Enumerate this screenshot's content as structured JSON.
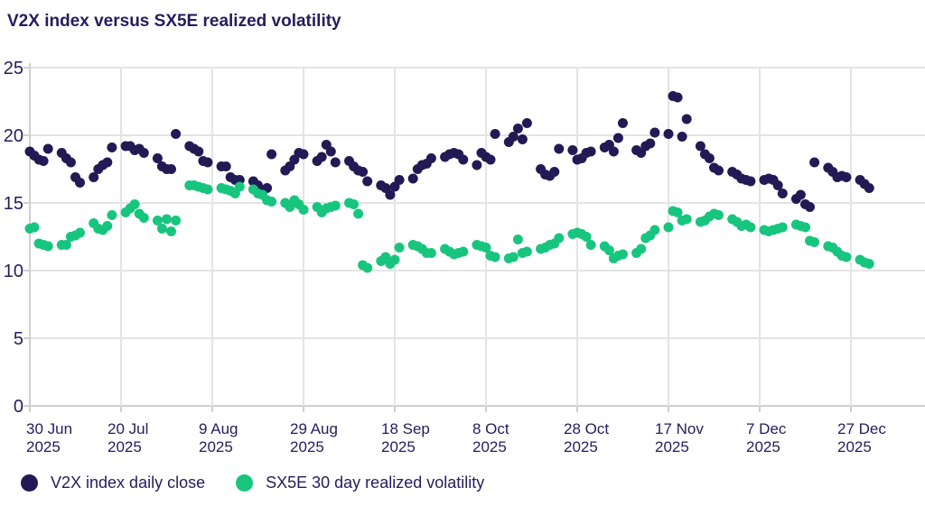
{
  "chart_data": {
    "type": "scatter",
    "title": "V2X index versus SX5E realized volatility",
    "xlabel": "",
    "ylabel": "",
    "grid": true,
    "legend_position": "bottom-left",
    "colors": {
      "v2x": "#221A54",
      "sx5e": "#18C57E",
      "text": "#251C5E",
      "gridline": "#E4E4E4",
      "axis": "#CFCFCF"
    },
    "y_axis": {
      "min": 0,
      "max": 25,
      "ticks": [
        0,
        5,
        10,
        15,
        20,
        25
      ]
    },
    "x_axis": {
      "unit": "days-since-30-Jun-2025",
      "ticks": [
        {
          "day": 0,
          "label": "30 Jun",
          "year": "2025"
        },
        {
          "day": 20,
          "label": "20 Jul",
          "year": "2025"
        },
        {
          "day": 40,
          "label": "9 Aug",
          "year": "2025"
        },
        {
          "day": 60,
          "label": "29 Aug",
          "year": "2025"
        },
        {
          "day": 80,
          "label": "18 Sep",
          "year": "2025"
        },
        {
          "day": 100,
          "label": "8 Oct",
          "year": "2025"
        },
        {
          "day": 120,
          "label": "28 Oct",
          "year": "2025"
        },
        {
          "day": 140,
          "label": "17 Nov",
          "year": "2025"
        },
        {
          "day": 160,
          "label": "7 Dec",
          "year": "2025"
        },
        {
          "day": 180,
          "label": "27 Dec",
          "year": "2025"
        }
      ]
    },
    "series": [
      {
        "name": "V2X index daily close",
        "color": "#221A54",
        "points": [
          [
            0,
            18.8
          ],
          [
            1,
            18.5
          ],
          [
            2,
            18.2
          ],
          [
            3,
            18.1
          ],
          [
            4,
            19.0
          ],
          [
            7,
            18.7
          ],
          [
            8,
            18.3
          ],
          [
            9,
            18.0
          ],
          [
            10,
            16.9
          ],
          [
            11,
            16.5
          ],
          [
            14,
            16.9
          ],
          [
            15,
            17.5
          ],
          [
            16,
            17.8
          ],
          [
            17,
            18.0
          ],
          [
            18,
            19.1
          ],
          [
            21,
            19.2
          ],
          [
            22,
            19.2
          ],
          [
            23,
            18.9
          ],
          [
            24,
            19.0
          ],
          [
            25,
            18.7
          ],
          [
            28,
            18.3
          ],
          [
            29,
            17.7
          ],
          [
            30,
            17.5
          ],
          [
            31,
            17.5
          ],
          [
            32,
            20.1
          ],
          [
            35,
            19.2
          ],
          [
            36,
            19.0
          ],
          [
            37,
            18.8
          ],
          [
            38,
            18.1
          ],
          [
            39,
            18.0
          ],
          [
            42,
            17.7
          ],
          [
            43,
            17.7
          ],
          [
            44,
            16.9
          ],
          [
            45,
            16.7
          ],
          [
            46,
            16.7
          ],
          [
            49,
            16.6
          ],
          [
            50,
            16.3
          ],
          [
            51,
            15.8
          ],
          [
            52,
            16.1
          ],
          [
            53,
            18.6
          ],
          [
            56,
            17.4
          ],
          [
            57,
            17.7
          ],
          [
            58,
            18.2
          ],
          [
            59,
            18.7
          ],
          [
            60,
            18.6
          ],
          [
            63,
            18.1
          ],
          [
            64,
            18.4
          ],
          [
            65,
            19.3
          ],
          [
            66,
            18.8
          ],
          [
            67,
            18.0
          ],
          [
            70,
            18.1
          ],
          [
            71,
            17.7
          ],
          [
            72,
            17.4
          ],
          [
            73,
            17.3
          ],
          [
            74,
            16.6
          ],
          [
            77,
            16.3
          ],
          [
            78,
            16.1
          ],
          [
            79,
            15.6
          ],
          [
            80,
            16.2
          ],
          [
            81,
            16.7
          ],
          [
            84,
            16.8
          ],
          [
            85,
            17.5
          ],
          [
            86,
            17.8
          ],
          [
            87,
            17.9
          ],
          [
            88,
            18.3
          ],
          [
            91,
            18.4
          ],
          [
            92,
            18.6
          ],
          [
            93,
            18.7
          ],
          [
            94,
            18.6
          ],
          [
            95,
            18.2
          ],
          [
            98,
            17.8
          ],
          [
            99,
            18.7
          ],
          [
            100,
            18.4
          ],
          [
            101,
            18.2
          ],
          [
            102,
            20.1
          ],
          [
            105,
            19.5
          ],
          [
            106,
            19.9
          ],
          [
            107,
            20.5
          ],
          [
            108,
            19.7
          ],
          [
            109,
            20.9
          ],
          [
            112,
            17.5
          ],
          [
            113,
            17.1
          ],
          [
            114,
            17.0
          ],
          [
            115,
            17.3
          ],
          [
            116,
            19.0
          ],
          [
            119,
            18.9
          ],
          [
            120,
            18.2
          ],
          [
            121,
            18.3
          ],
          [
            122,
            18.7
          ],
          [
            123,
            18.8
          ],
          [
            126,
            19.1
          ],
          [
            127,
            19.3
          ],
          [
            128,
            18.8
          ],
          [
            129,
            19.8
          ],
          [
            130,
            20.9
          ],
          [
            133,
            18.9
          ],
          [
            134,
            18.7
          ],
          [
            135,
            19.2
          ],
          [
            136,
            19.4
          ],
          [
            137,
            20.2
          ],
          [
            140,
            20.1
          ],
          [
            141,
            22.9
          ],
          [
            142,
            22.8
          ],
          [
            143,
            19.9
          ],
          [
            144,
            21.2
          ],
          [
            147,
            19.2
          ],
          [
            148,
            18.6
          ],
          [
            149,
            18.3
          ],
          [
            150,
            17.6
          ],
          [
            151,
            17.4
          ],
          [
            154,
            17.3
          ],
          [
            155,
            17.1
          ],
          [
            156,
            16.8
          ],
          [
            157,
            16.7
          ],
          [
            158,
            16.6
          ],
          [
            161,
            16.7
          ],
          [
            162,
            16.8
          ],
          [
            163,
            16.7
          ],
          [
            164,
            16.3
          ],
          [
            165,
            15.7
          ],
          [
            168,
            15.3
          ],
          [
            169,
            15.6
          ],
          [
            170,
            14.9
          ],
          [
            171,
            14.7
          ],
          [
            172,
            18.0
          ],
          [
            175,
            17.6
          ],
          [
            176,
            17.3
          ],
          [
            177,
            16.9
          ],
          [
            178,
            17.0
          ],
          [
            179,
            16.9
          ],
          [
            182,
            16.7
          ],
          [
            183,
            16.4
          ],
          [
            184,
            16.1
          ]
        ]
      },
      {
        "name": "SX5E 30 day realized volatility",
        "color": "#18C57E",
        "points": [
          [
            0,
            13.1
          ],
          [
            1,
            13.2
          ],
          [
            2,
            12.0
          ],
          [
            3,
            11.9
          ],
          [
            4,
            11.8
          ],
          [
            7,
            11.9
          ],
          [
            8,
            11.9
          ],
          [
            9,
            12.5
          ],
          [
            10,
            12.6
          ],
          [
            11,
            12.8
          ],
          [
            14,
            13.5
          ],
          [
            15,
            13.1
          ],
          [
            16,
            13.0
          ],
          [
            17,
            13.3
          ],
          [
            18,
            14.1
          ],
          [
            21,
            14.3
          ],
          [
            22,
            14.6
          ],
          [
            23,
            14.9
          ],
          [
            24,
            14.2
          ],
          [
            25,
            13.9
          ],
          [
            28,
            13.7
          ],
          [
            29,
            13.1
          ],
          [
            30,
            13.8
          ],
          [
            31,
            12.9
          ],
          [
            32,
            13.7
          ],
          [
            35,
            16.3
          ],
          [
            36,
            16.3
          ],
          [
            37,
            16.2
          ],
          [
            38,
            16.1
          ],
          [
            39,
            16.0
          ],
          [
            42,
            16.1
          ],
          [
            43,
            16.0
          ],
          [
            44,
            15.9
          ],
          [
            45,
            15.7
          ],
          [
            46,
            16.2
          ],
          [
            49,
            16.0
          ],
          [
            50,
            15.7
          ],
          [
            51,
            15.6
          ],
          [
            52,
            15.2
          ],
          [
            53,
            15.1
          ],
          [
            56,
            15.0
          ],
          [
            57,
            14.7
          ],
          [
            58,
            15.2
          ],
          [
            59,
            14.9
          ],
          [
            60,
            14.5
          ],
          [
            63,
            14.7
          ],
          [
            64,
            14.3
          ],
          [
            65,
            14.6
          ],
          [
            66,
            14.7
          ],
          [
            67,
            14.8
          ],
          [
            70,
            15.0
          ],
          [
            71,
            14.9
          ],
          [
            72,
            14.2
          ],
          [
            73,
            10.4
          ],
          [
            74,
            10.2
          ],
          [
            77,
            10.7
          ],
          [
            78,
            11.0
          ],
          [
            79,
            10.5
          ],
          [
            80,
            10.8
          ],
          [
            81,
            11.7
          ],
          [
            84,
            11.9
          ],
          [
            85,
            11.8
          ],
          [
            86,
            11.6
          ],
          [
            87,
            11.3
          ],
          [
            88,
            11.3
          ],
          [
            91,
            11.6
          ],
          [
            92,
            11.4
          ],
          [
            93,
            11.2
          ],
          [
            94,
            11.3
          ],
          [
            95,
            11.4
          ],
          [
            98,
            11.9
          ],
          [
            99,
            11.8
          ],
          [
            100,
            11.7
          ],
          [
            101,
            11.1
          ],
          [
            102,
            11.0
          ],
          [
            105,
            10.9
          ],
          [
            106,
            11.0
          ],
          [
            107,
            12.3
          ],
          [
            108,
            11.3
          ],
          [
            109,
            11.4
          ],
          [
            112,
            11.6
          ],
          [
            113,
            11.7
          ],
          [
            114,
            11.9
          ],
          [
            115,
            12.0
          ],
          [
            116,
            12.4
          ],
          [
            119,
            12.7
          ],
          [
            120,
            12.8
          ],
          [
            121,
            12.7
          ],
          [
            122,
            12.5
          ],
          [
            123,
            11.9
          ],
          [
            126,
            11.8
          ],
          [
            127,
            11.5
          ],
          [
            128,
            10.9
          ],
          [
            129,
            11.1
          ],
          [
            130,
            11.2
          ],
          [
            133,
            11.3
          ],
          [
            134,
            11.6
          ],
          [
            135,
            12.4
          ],
          [
            136,
            12.6
          ],
          [
            137,
            13.0
          ],
          [
            140,
            13.2
          ],
          [
            141,
            14.4
          ],
          [
            142,
            14.3
          ],
          [
            143,
            13.7
          ],
          [
            144,
            13.8
          ],
          [
            147,
            13.6
          ],
          [
            148,
            13.7
          ],
          [
            149,
            14.0
          ],
          [
            150,
            14.2
          ],
          [
            151,
            14.1
          ],
          [
            154,
            13.8
          ],
          [
            155,
            13.6
          ],
          [
            156,
            13.3
          ],
          [
            157,
            13.4
          ],
          [
            158,
            13.2
          ],
          [
            161,
            13.0
          ],
          [
            162,
            12.9
          ],
          [
            163,
            13.0
          ],
          [
            164,
            13.1
          ],
          [
            165,
            13.2
          ],
          [
            168,
            13.4
          ],
          [
            169,
            13.3
          ],
          [
            170,
            13.2
          ],
          [
            171,
            12.2
          ],
          [
            172,
            12.1
          ],
          [
            175,
            11.8
          ],
          [
            176,
            11.7
          ],
          [
            177,
            11.4
          ],
          [
            178,
            11.1
          ],
          [
            179,
            11.0
          ],
          [
            182,
            10.8
          ],
          [
            183,
            10.6
          ],
          [
            184,
            10.5
          ]
        ]
      }
    ]
  }
}
